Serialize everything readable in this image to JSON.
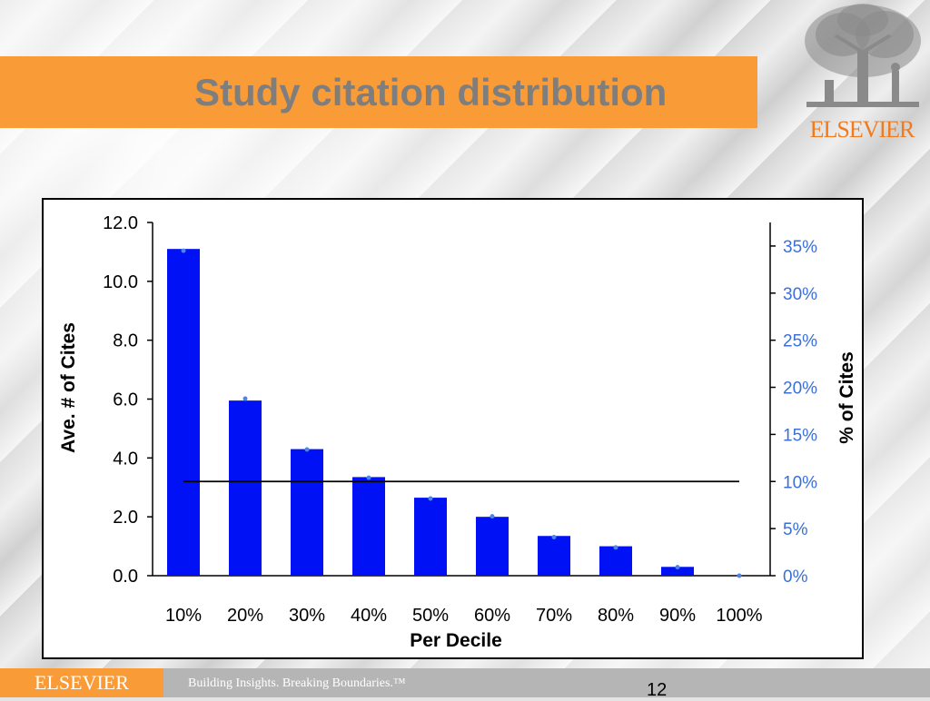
{
  "slide": {
    "title": "Study citation distribution",
    "logo_text": "ELSEVIER",
    "footer_brand": "ELSEVIER",
    "footer_tagline": "Building Insights. Breaking Boundaries.™",
    "page_number": "12"
  },
  "colors": {
    "accent_orange": "#f99c38",
    "title_gray": "#7e7e7e",
    "bar_blue": "#0012f5",
    "point_blue": "#4a86e8",
    "right_axis_blue": "#3a6fd8",
    "logo_orange": "#f07a1e"
  },
  "chart_data": {
    "type": "bar",
    "xlabel": "Per Decile",
    "ylabel": "Ave. # of Cites",
    "y2label": "% of Cites",
    "categories": [
      "10%",
      "20%",
      "30%",
      "40%",
      "50%",
      "60%",
      "70%",
      "80%",
      "90%",
      "100%"
    ],
    "ylim": [
      0,
      12
    ],
    "yticks": [
      "0.0",
      "2.0",
      "4.0",
      "6.0",
      "8.0",
      "10.0",
      "12.0"
    ],
    "y2lim": [
      0,
      0.375
    ],
    "y2ticks": [
      "0%",
      "5%",
      "10%",
      "15%",
      "20%",
      "25%",
      "30%",
      "35%"
    ],
    "series": [
      {
        "kind": "bar",
        "axis": "left",
        "values": [
          11.1,
          5.95,
          4.3,
          3.35,
          2.65,
          2.0,
          1.35,
          1.0,
          0.3,
          0.0
        ]
      },
      {
        "kind": "points",
        "axis": "right",
        "values": [
          0.345,
          0.188,
          0.134,
          0.104,
          0.082,
          0.063,
          0.041,
          0.03,
          0.009,
          0.0
        ]
      }
    ],
    "reference_line": {
      "axis": "right",
      "value": 0.1
    },
    "grid": false,
    "legend": "none"
  }
}
